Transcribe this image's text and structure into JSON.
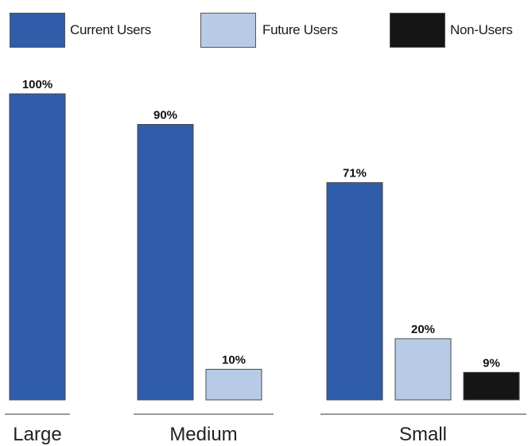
{
  "legend": {
    "current": "Current Users",
    "future": "Future Users",
    "non": "Non-Users"
  },
  "colors": {
    "current": "#2F5DAA",
    "future": "#B8CBE6",
    "non": "#151515",
    "axis": "#9a9a9a"
  },
  "chart_data": {
    "type": "bar",
    "categories": [
      "Large",
      "Medium",
      "Small"
    ],
    "series": [
      {
        "name": "Current Users",
        "values": [
          100,
          90,
          71
        ]
      },
      {
        "name": "Future Users",
        "values": [
          null,
          10,
          20
        ]
      },
      {
        "name": "Non-Users",
        "values": [
          null,
          null,
          9
        ]
      }
    ],
    "data_labels": [
      [
        "100%",
        null,
        null
      ],
      [
        "90%",
        "10%",
        null
      ],
      [
        "71%",
        "20%",
        "9%"
      ]
    ],
    "legend_position": "top",
    "grid": false,
    "ylim": [
      0,
      100
    ]
  }
}
